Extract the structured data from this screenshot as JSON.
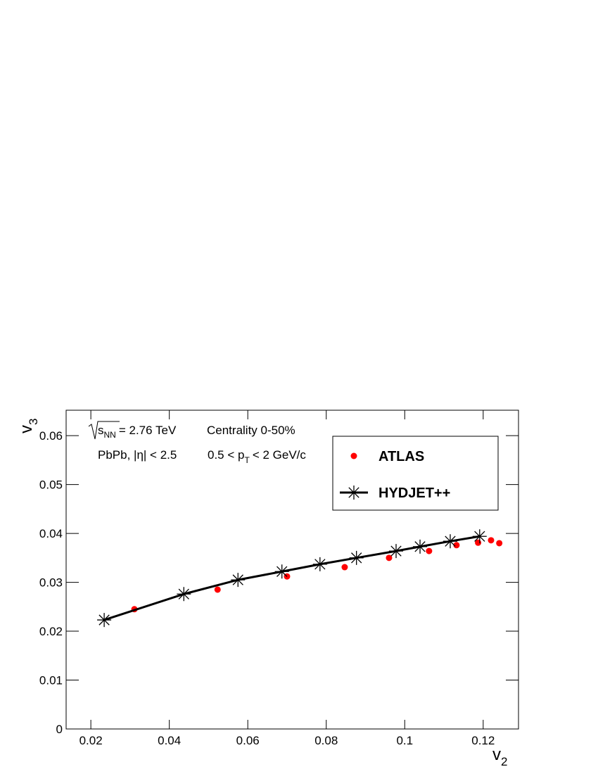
{
  "chart_data": {
    "type": "scatter",
    "xlabel": {
      "text": "v",
      "sub": "2"
    },
    "ylabel": {
      "text": "v",
      "sub": "3"
    },
    "annotations": [
      {
        "text": "s",
        "sub": "NN",
        "after": "= 2.76 TeV"
      },
      {
        "text": "Centrality 0-50%"
      },
      {
        "text": "PbPb, |η| < 2.5"
      },
      {
        "text": "0.5 < p",
        "sub": "T",
        "after": "< 2 GeV/c"
      }
    ],
    "xlim": [
      0.0137,
      0.129
    ],
    "xticks": [
      0.02,
      0.04,
      0.06,
      0.08,
      0.1,
      0.12
    ],
    "ylim": [
      0,
      0.0652
    ],
    "yticks": [
      0,
      0.01,
      0.02,
      0.03,
      0.04,
      0.05,
      0.06
    ],
    "legend": "top-right",
    "series": [
      {
        "name": "ATLAS",
        "color": "#ff0000",
        "marker": "circle",
        "line": false,
        "x": [
          0.0311,
          0.0523,
          0.07,
          0.0847,
          0.096,
          0.1062,
          0.1132,
          0.1187,
          0.122,
          0.1241
        ],
        "values": [
          0.0245,
          0.0285,
          0.0312,
          0.0331,
          0.035,
          0.0364,
          0.0376,
          0.0381,
          0.0386,
          0.038
        ]
      },
      {
        "name": "HYDJET++",
        "color": "#000000",
        "marker": "star",
        "line": true,
        "x": [
          0.0234,
          0.0437,
          0.0575,
          0.0687,
          0.0784,
          0.0877,
          0.0978,
          0.1039,
          0.1116,
          0.1191
        ],
        "values": [
          0.0223,
          0.0276,
          0.0305,
          0.0322,
          0.0337,
          0.035,
          0.0364,
          0.0373,
          0.0384,
          0.0394
        ]
      }
    ]
  }
}
